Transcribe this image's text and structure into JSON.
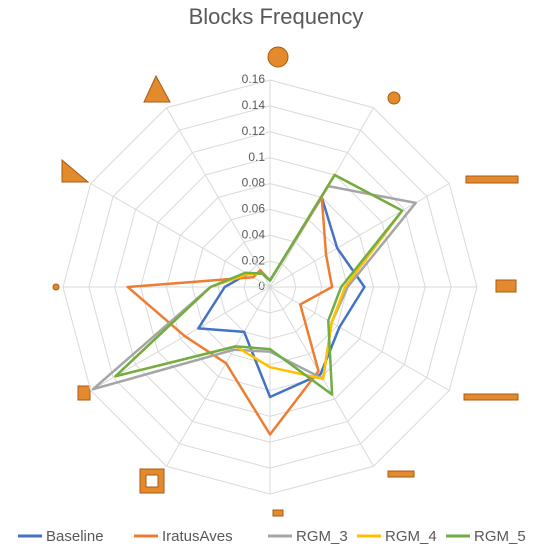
{
  "chart_data": {
    "type": "radar",
    "title": "Blocks Frequency",
    "categories": [
      null,
      null,
      null,
      null,
      null,
      null,
      null,
      null,
      null,
      null,
      null,
      null
    ],
    "ylim": [
      0,
      0.16
    ],
    "yticks": [
      0,
      0.02,
      0.04,
      0.06,
      0.08,
      0.1,
      0.12,
      0.14,
      0.16
    ],
    "grid": true,
    "legend": "bottom",
    "series": [
      {
        "name": "Baseline",
        "color": "#4472c4",
        "values": [
          0.005,
          0.08,
          0.06,
          0.073,
          0.062,
          0.078,
          0.085,
          0.04,
          0.064,
          0.035,
          0.02,
          0.012
        ]
      },
      {
        "name": "IratusAves",
        "color": "#ed7d31",
        "values": [
          0.005,
          0.08,
          0.05,
          0.048,
          0.027,
          0.075,
          0.114,
          0.068,
          0.076,
          0.11,
          0.015,
          0.015
        ]
      },
      {
        "name": "RGM_3",
        "color": "#a5a5a5",
        "values": [
          0.005,
          0.09,
          0.13,
          0.06,
          0.055,
          0.082,
          0.05,
          0.056,
          0.158,
          0.046,
          0.02,
          0.012
        ]
      },
      {
        "name": "RGM_4",
        "color": "#ffc000",
        "values": [
          0.005,
          0.1,
          0.118,
          0.058,
          0.055,
          0.082,
          0.062,
          0.053,
          0.138,
          0.046,
          0.02,
          0.012
        ]
      },
      {
        "name": "RGM_5",
        "color": "#70ad47",
        "values": [
          0.005,
          0.1,
          0.118,
          0.055,
          0.052,
          0.096,
          0.048,
          0.053,
          0.138,
          0.046,
          0.022,
          0.012
        ]
      }
    ]
  }
}
